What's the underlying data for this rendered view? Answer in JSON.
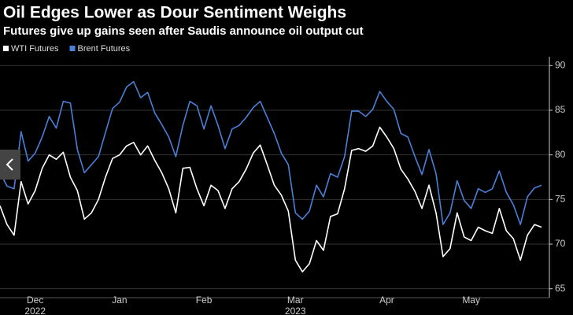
{
  "chart_data": {
    "type": "line",
    "title": "Oil Edges Lower as Dour Sentiment Weighs",
    "subtitle": "Futures give up gains seen after Saudis announce oil output cut",
    "categories": [
      null,
      null,
      null,
      null,
      null,
      "Dec",
      null,
      null,
      null,
      null,
      null,
      null,
      null,
      null,
      null,
      null,
      null,
      "Jan",
      null,
      null,
      null,
      null,
      null,
      null,
      null,
      null,
      null,
      null,
      null,
      "Feb",
      null,
      null,
      null,
      null,
      null,
      null,
      null,
      null,
      null,
      null,
      null,
      null,
      "Mar",
      null,
      null,
      null,
      null,
      null,
      null,
      null,
      null,
      null,
      null,
      null,
      null,
      "Apr",
      null,
      null,
      null,
      null,
      null,
      null,
      null,
      null,
      null,
      null,
      null,
      "May",
      null,
      null,
      null,
      null,
      null,
      null,
      null,
      null,
      null,
      null
    ],
    "category_years": [
      null,
      null,
      null,
      null,
      null,
      "2022",
      null,
      null,
      null,
      null,
      null,
      null,
      null,
      null,
      null,
      null,
      null,
      null,
      null,
      null,
      null,
      null,
      null,
      null,
      null,
      null,
      null,
      null,
      null,
      null,
      null,
      null,
      null,
      null,
      null,
      null,
      null,
      null,
      null,
      null,
      null,
      null,
      "2023",
      null,
      null,
      null,
      null,
      null,
      null,
      null,
      null,
      null,
      null,
      null,
      null,
      null,
      null,
      null,
      null,
      null,
      null,
      null,
      null,
      null,
      null,
      null,
      null,
      null,
      null,
      null,
      null,
      null,
      null,
      null,
      null,
      null,
      null,
      null
    ],
    "series": [
      {
        "name": "WTI Futures",
        "color": "#ffffff",
        "values": [
          74.3,
          72.2,
          71,
          77,
          74.5,
          76,
          78.5,
          80,
          79.5,
          80.3,
          77.5,
          76,
          72.8,
          73.5,
          75,
          77.5,
          79.6,
          80,
          81,
          81.4,
          80,
          81,
          79.4,
          78,
          76.2,
          73.5,
          78.5,
          78.6,
          76.2,
          74.3,
          76.6,
          76,
          74,
          76.2,
          77,
          78.4,
          80.2,
          81.1,
          78.9,
          76.6,
          75.5,
          73.7,
          68.2,
          66.9,
          67.8,
          70.4,
          69.3,
          73.1,
          73.4,
          76.2,
          80.5,
          80.7,
          80.4,
          81,
          83.1,
          82,
          80.7,
          78.4,
          77.3,
          75.9,
          74,
          76.6,
          73.5,
          68.6,
          69.5,
          73.5,
          70.8,
          70.4,
          71.9,
          71.5,
          71.2,
          74,
          71.5,
          70.6,
          68.2,
          71,
          72.2,
          71.9
        ]
      },
      {
        "name": "Brent Futures",
        "color": "#4a80d8",
        "values": [
          78,
          76.5,
          76.2,
          82.6,
          79.3,
          80.2,
          82,
          84.3,
          83,
          86,
          85.8,
          80.6,
          78,
          78.9,
          79.8,
          82.5,
          85.2,
          85.9,
          87.6,
          88.2,
          86.4,
          87,
          84.7,
          83.4,
          82,
          79.8,
          83.3,
          86,
          85.5,
          82.9,
          85.5,
          83.3,
          80.7,
          82.9,
          83.3,
          84.2,
          85.3,
          86,
          84.2,
          82.4,
          80.2,
          78.9,
          73.5,
          72.8,
          73.7,
          76.6,
          75.3,
          77.9,
          77.5,
          79.8,
          84.9,
          84.9,
          84.3,
          85.1,
          87.1,
          86,
          85.1,
          82.4,
          82,
          79.8,
          77.8,
          80.6,
          77.9,
          72.2,
          73.5,
          77.1,
          74.9,
          74,
          76.2,
          75.8,
          76.2,
          78.2,
          75.8,
          74.4,
          72.2,
          75.3,
          76.3,
          76.6
        ]
      }
    ],
    "ylim": [
      64,
      91
    ],
    "yticks": [
      65,
      70,
      75,
      80,
      85,
      90
    ],
    "grid": true
  }
}
